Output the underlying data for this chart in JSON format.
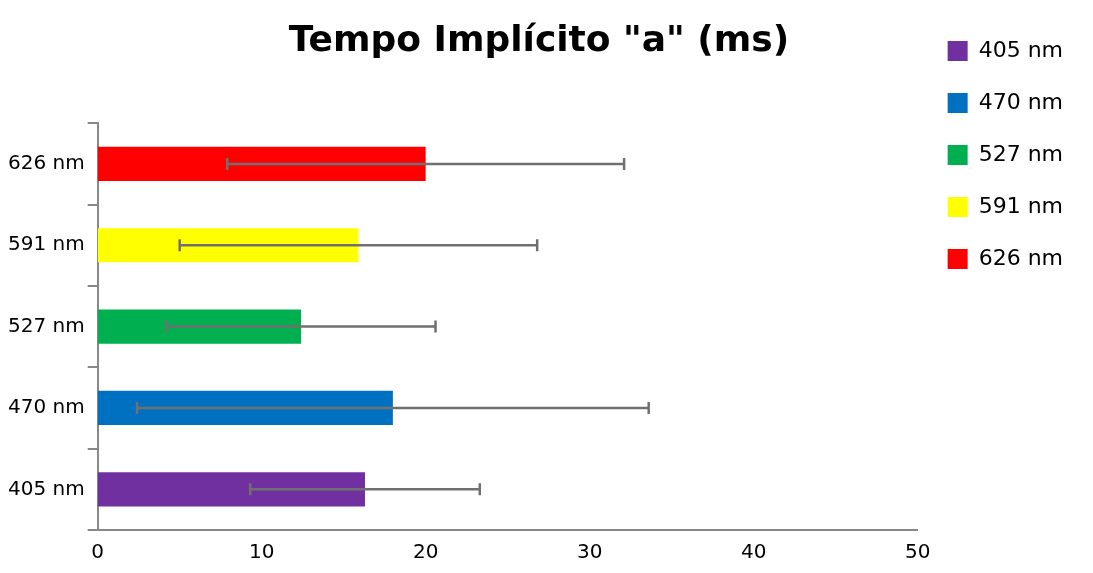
{
  "chart_data": {
    "type": "bar",
    "title": "Tempo Implícito \"a\" (ms)",
    "orientation": "horizontal",
    "stacked": true,
    "categories": [
      "626 nm",
      "591 nm",
      "527 nm",
      "470 nm",
      "405 nm"
    ],
    "series": [
      {
        "name": "405 nm",
        "color": "#7030a0",
        "values": [
          null,
          null,
          null,
          null,
          16.3
        ],
        "errors": [
          null,
          null,
          null,
          null,
          7
        ]
      },
      {
        "name": "470 nm",
        "color": "#0070c0",
        "values": [
          null,
          null,
          null,
          18.0,
          null
        ],
        "errors": [
          null,
          null,
          null,
          15.6,
          null
        ]
      },
      {
        "name": "527 nm",
        "color": "#00b050",
        "values": [
          null,
          null,
          12.4,
          null,
          null
        ],
        "errors": [
          null,
          null,
          8.2,
          null,
          null
        ]
      },
      {
        "name": "591 nm",
        "color": "#ffff00",
        "values": [
          null,
          15.9,
          null,
          null,
          null
        ],
        "errors": [
          null,
          10.9,
          null,
          null,
          null
        ]
      },
      {
        "name": "626 nm",
        "color": "#ff0000",
        "values": [
          20.0,
          null,
          null,
          null,
          null
        ],
        "errors": [
          12.1,
          null,
          null,
          null,
          null
        ]
      }
    ],
    "xlim": [
      0,
      50
    ],
    "xticks": [
      0,
      10,
      20,
      30,
      40,
      50
    ],
    "grid": false,
    "legend": "right"
  }
}
